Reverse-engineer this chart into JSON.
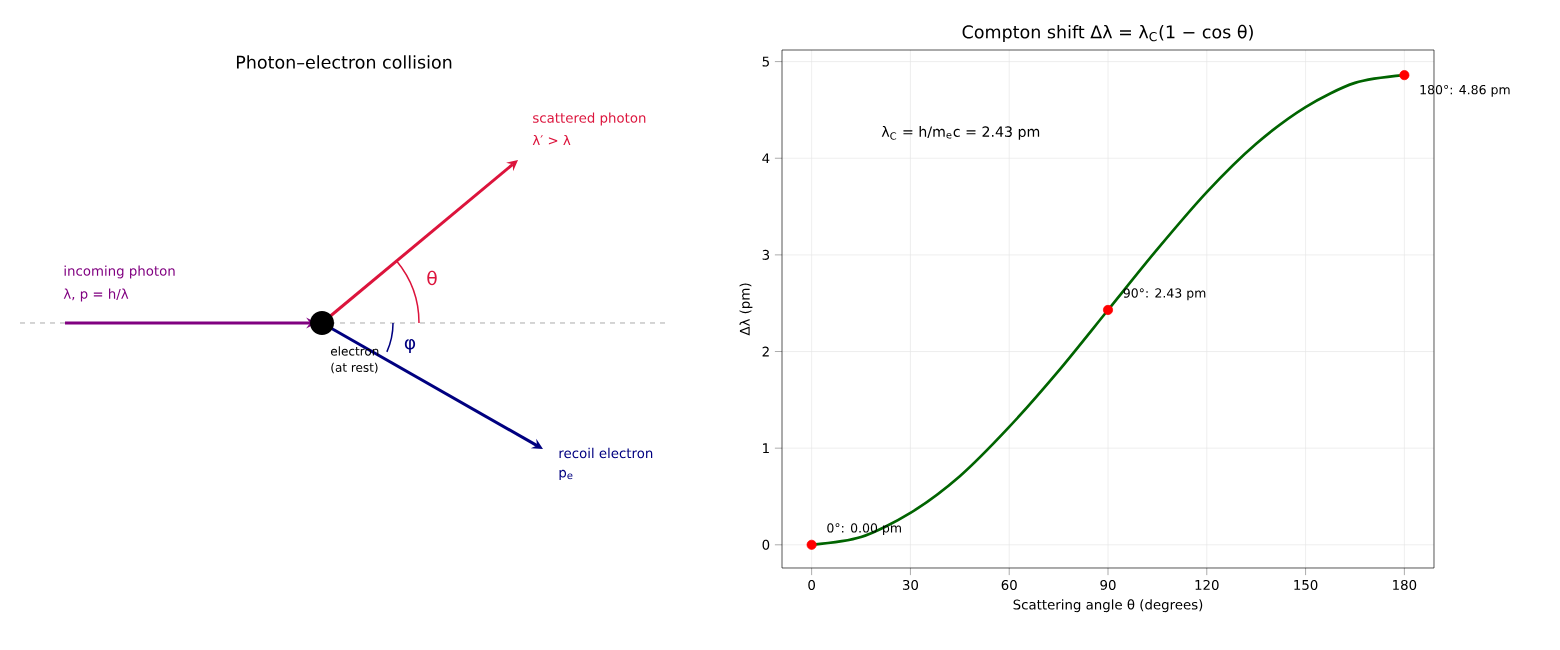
{
  "chart_data": [
    {
      "type": "other",
      "title": "Photon–electron collision",
      "annotations": [
        "incoming photon",
        "λ, p = h/λ",
        "scattered photon",
        "λ′ > λ",
        "θ",
        "electron",
        "(at rest)",
        "φ",
        "recoil electron",
        "p$_{e}$"
      ]
    },
    {
      "type": "line",
      "title": "Compton shift  Δλ = λ$_{C}$(1 − cos θ)",
      "xlabel": "Scattering angle θ (degrees)",
      "ylabel": "Δλ (pm)",
      "xlim": [
        -9,
        189
      ],
      "ylim": [
        -0.24,
        5.12
      ],
      "xticks": [
        0,
        30,
        60,
        90,
        120,
        150,
        180
      ],
      "yticks": [
        0,
        1,
        2,
        3,
        4,
        5
      ],
      "grid": true,
      "annotations": [
        "λ$_{C}$ = h/m$_{e}$c = 2.43 pm"
      ],
      "series": [
        {
          "type": "line",
          "color": "#006400",
          "marker": "none",
          "x": [
            0,
            15,
            30,
            45,
            60,
            75,
            90,
            105,
            120,
            135,
            150,
            165,
            180
          ],
          "values": [
            0,
            0.08,
            0.33,
            0.71,
            1.22,
            1.8,
            2.43,
            3.06,
            3.65,
            4.15,
            4.53,
            4.78,
            4.86
          ]
        },
        {
          "type": "scatter",
          "color": "#ff0000",
          "marker": "circle",
          "x": [
            0,
            90,
            180
          ],
          "values": [
            0,
            2.43,
            4.86
          ],
          "value_labels": [
            "0°: 0.00 pm",
            "90°: 2.43 pm",
            "180°: 4.86 pm"
          ]
        }
      ]
    }
  ]
}
